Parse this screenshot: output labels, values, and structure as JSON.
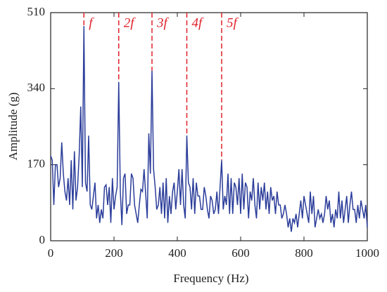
{
  "chart_data": {
    "type": "line",
    "xlabel": "Frequency (Hz)",
    "ylabel": "Amplitude (g)",
    "xlim": [
      0,
      1000
    ],
    "xticks": [
      0,
      200,
      400,
      600,
      800,
      1000
    ],
    "ylim": [
      0,
      510
    ],
    "yticks": [
      0,
      170,
      340,
      510
    ],
    "annotations": [
      {
        "x": 105,
        "label": "f"
      },
      {
        "x": 215,
        "label": "2f"
      },
      {
        "x": 320,
        "label": "3f"
      },
      {
        "x": 430,
        "label": "4f"
      },
      {
        "x": 540,
        "label": "5f"
      }
    ],
    "annotation_color": "#e0202a",
    "x": [
      0,
      5,
      10,
      15,
      20,
      25,
      30,
      35,
      40,
      45,
      50,
      55,
      60,
      65,
      70,
      75,
      80,
      85,
      90,
      95,
      100,
      105,
      110,
      115,
      120,
      125,
      130,
      135,
      140,
      145,
      150,
      155,
      160,
      165,
      170,
      175,
      180,
      185,
      190,
      195,
      200,
      205,
      210,
      215,
      220,
      225,
      230,
      235,
      240,
      245,
      250,
      255,
      260,
      265,
      270,
      275,
      280,
      285,
      290,
      295,
      300,
      305,
      310,
      315,
      320,
      325,
      330,
      335,
      340,
      345,
      350,
      355,
      360,
      365,
      370,
      375,
      380,
      385,
      390,
      395,
      400,
      405,
      410,
      415,
      420,
      425,
      430,
      435,
      440,
      445,
      450,
      455,
      460,
      465,
      470,
      475,
      480,
      485,
      490,
      495,
      500,
      505,
      510,
      515,
      520,
      525,
      530,
      535,
      540,
      545,
      550,
      555,
      560,
      565,
      570,
      575,
      580,
      585,
      590,
      595,
      600,
      605,
      610,
      615,
      620,
      625,
      630,
      635,
      640,
      645,
      650,
      655,
      660,
      665,
      670,
      675,
      680,
      685,
      690,
      695,
      700,
      705,
      710,
      715,
      720,
      725,
      730,
      735,
      740,
      745,
      750,
      755,
      760,
      765,
      770,
      775,
      780,
      785,
      790,
      795,
      800,
      805,
      810,
      815,
      820,
      825,
      830,
      835,
      840,
      845,
      850,
      855,
      860,
      865,
      870,
      875,
      880,
      885,
      890,
      895,
      900,
      905,
      910,
      915,
      920,
      925,
      930,
      935,
      940,
      945,
      950,
      955,
      960,
      965,
      970,
      975,
      980,
      985,
      990,
      995,
      1000
    ],
    "series": [
      {
        "color": "#2b3d9a",
        "values": [
          190,
          180,
          80,
          170,
          170,
          120,
          140,
          220,
          150,
          110,
          90,
          140,
          80,
          180,
          70,
          200,
          90,
          120,
          190,
          300,
          120,
          480,
          130,
          110,
          235,
          80,
          70,
          100,
          130,
          50,
          80,
          40,
          70,
          50,
          120,
          125,
          80,
          120,
          40,
          140,
          70,
          100,
          120,
          355,
          110,
          35,
          140,
          150,
          60,
          80,
          80,
          150,
          140,
          80,
          60,
          40,
          80,
          115,
          110,
          160,
          105,
          50,
          240,
          150,
          380,
          160,
          120,
          70,
          80,
          120,
          60,
          130,
          50,
          140,
          40,
          100,
          60,
          110,
          130,
          70,
          110,
          160,
          80,
          160,
          80,
          50,
          235,
          130,
          120,
          70,
          140,
          60,
          130,
          100,
          100,
          70,
          70,
          120,
          100,
          70,
          50,
          100,
          90,
          60,
          70,
          110,
          60,
          120,
          180,
          70,
          100,
          80,
          150,
          60,
          140,
          60,
          130,
          120,
          80,
          140,
          60,
          150,
          70,
          130,
          120,
          50,
          110,
          90,
          140,
          80,
          50,
          130,
          70,
          120,
          90,
          130,
          70,
          110,
          60,
          120,
          90,
          100,
          60,
          110,
          80,
          80,
          50,
          60,
          80,
          60,
          30,
          50,
          20,
          50,
          40,
          60,
          30,
          60,
          90,
          50,
          100,
          80,
          60,
          40,
          110,
          60,
          100,
          30,
          50,
          70,
          50,
          60,
          40,
          60,
          100,
          70,
          90,
          40,
          60,
          30,
          70,
          50,
          110,
          50,
          90,
          40,
          70,
          100,
          40,
          80,
          110,
          70,
          70,
          40,
          80,
          50,
          90,
          70,
          50,
          80,
          30
        ]
      }
    ]
  }
}
